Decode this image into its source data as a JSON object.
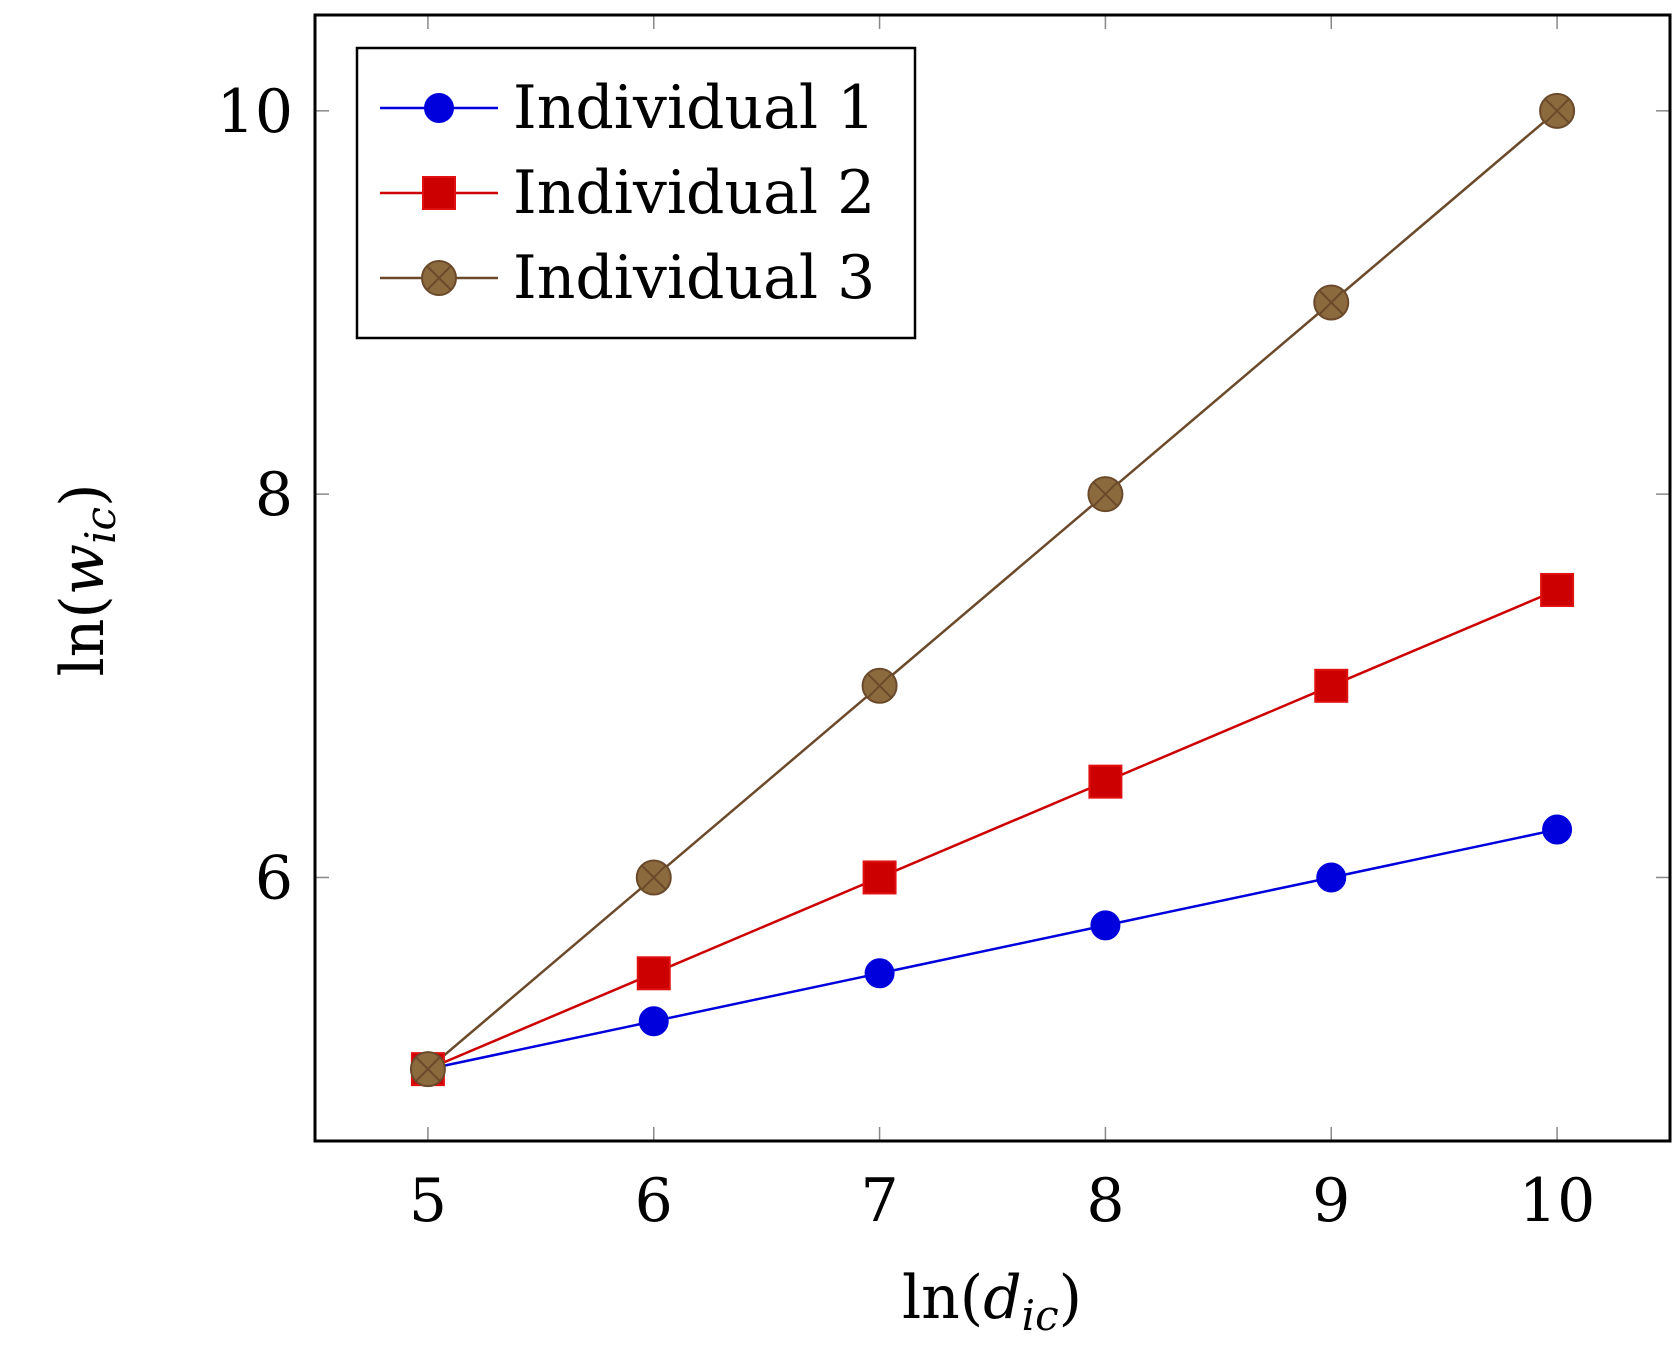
{
  "chart_data": {
    "type": "line",
    "x": [
      5,
      6,
      7,
      8,
      9,
      10
    ],
    "series": [
      {
        "name": "Individual 1",
        "values": [
          5.0,
          5.25,
          5.5,
          5.75,
          6.0,
          6.25
        ],
        "color": "#0000dd",
        "marker": "circle"
      },
      {
        "name": "Individual 2",
        "values": [
          5.0,
          5.5,
          6.0,
          6.5,
          7.0,
          7.5
        ],
        "color": "#cc0000",
        "marker": "square"
      },
      {
        "name": "Individual 3",
        "values": [
          5.0,
          6.0,
          7.0,
          8.0,
          9.0,
          10.0
        ],
        "color": "#6b4a2b",
        "marker_fill": "#8b6a3e",
        "marker": "otimes"
      }
    ],
    "xticks": [
      "5",
      "6",
      "7",
      "8",
      "9",
      "10"
    ],
    "yticks": [
      "6",
      "8",
      "10"
    ],
    "xlabel": "ln(d_ic)",
    "ylabel": "ln(w_ic)",
    "xlabel_parts": {
      "fn": "ln(",
      "var": "d",
      "sub": "ic",
      "close": ")"
    },
    "ylabel_parts": {
      "fn": "ln(",
      "var": "w",
      "sub": "ic",
      "close": ")"
    },
    "xlim": [
      4.5,
      10.5
    ],
    "ylim": [
      4.625,
      10.5
    ],
    "grid": false,
    "legend_position": "top-left"
  }
}
